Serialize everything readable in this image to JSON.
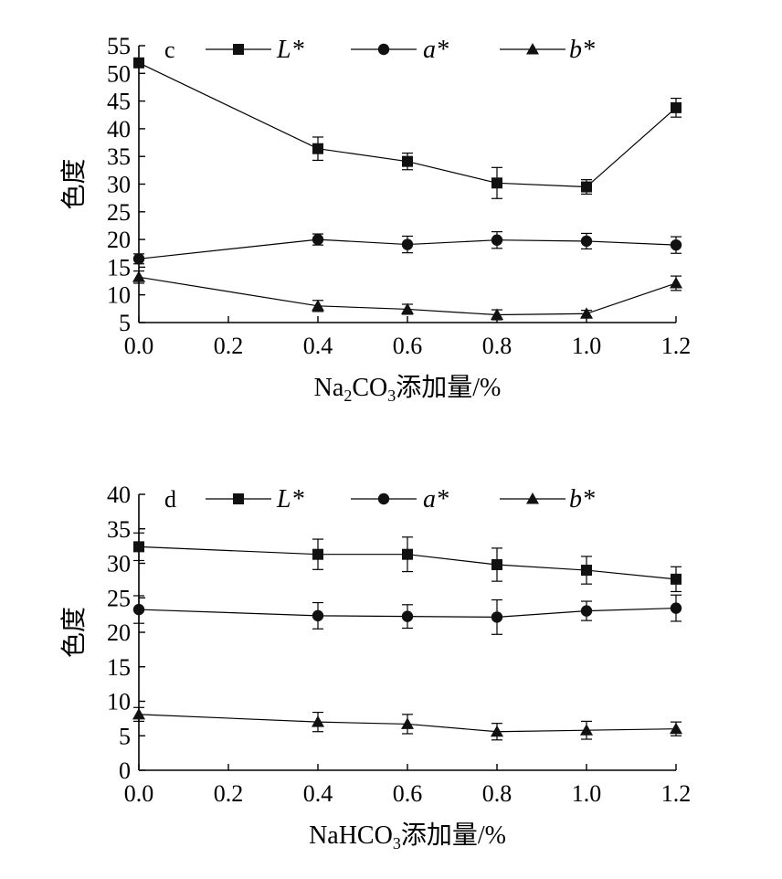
{
  "chart_data": [
    {
      "type": "line",
      "panel_label": "c",
      "xlabel": "Na2CO3添加量/%",
      "xlabel_parts": {
        "a": "Na",
        "a_sub": "2",
        "b": "CO",
        "b_sub": "3",
        "c": "添加量/%"
      },
      "ylabel": "色度",
      "x": [
        0.0,
        0.4,
        0.6,
        0.8,
        1.0,
        1.2
      ],
      "xticks": [
        "0.0",
        "0.2",
        "0.4",
        "0.6",
        "0.8",
        "1.0",
        "1.2"
      ],
      "xlim": [
        0.0,
        1.2
      ],
      "ylim": [
        5,
        55
      ],
      "yticks": [
        "5",
        "10",
        "15",
        "20",
        "25",
        "30",
        "35",
        "40",
        "45",
        "50",
        "55"
      ],
      "legend_position": "top",
      "series": [
        {
          "name": "L*",
          "marker": "square",
          "values": [
            51.9,
            36.4,
            34.1,
            30.2,
            29.5,
            43.8
          ],
          "errors": [
            0.8,
            2.1,
            1.5,
            2.8,
            1.3,
            1.7
          ]
        },
        {
          "name": "a*",
          "marker": "circle",
          "values": [
            16.5,
            20.0,
            19.1,
            19.9,
            19.7,
            19.0
          ],
          "errors": [
            0.9,
            1.0,
            1.5,
            1.5,
            1.4,
            1.5
          ]
        },
        {
          "name": "b*",
          "marker": "triangle",
          "values": [
            13.2,
            8.0,
            7.4,
            6.4,
            6.6,
            12.1
          ],
          "errors": [
            1.1,
            1.0,
            0.9,
            0.9,
            0.6,
            1.3
          ]
        }
      ]
    },
    {
      "type": "line",
      "panel_label": "d",
      "xlabel": "NaHCO3添加量/%",
      "xlabel_parts": {
        "a": "NaHCO",
        "a_sub": "3",
        "b": "添加量/%",
        "b_sub": "",
        "c": ""
      },
      "ylabel": "色度",
      "x": [
        0.0,
        0.4,
        0.6,
        0.8,
        1.0,
        1.2
      ],
      "xticks": [
        "0.0",
        "0.2",
        "0.4",
        "0.6",
        "0.8",
        "1.0",
        "1.2"
      ],
      "xlim": [
        0.0,
        1.2
      ],
      "ylim": [
        0,
        40
      ],
      "yticks": [
        "0",
        "5",
        "10",
        "15",
        "20",
        "25",
        "30",
        "35",
        "40"
      ],
      "legend_position": "top",
      "series": [
        {
          "name": "L*",
          "marker": "square",
          "values": [
            32.4,
            31.3,
            31.3,
            29.8,
            29.0,
            27.7
          ],
          "errors": [
            2.0,
            2.2,
            2.5,
            2.4,
            2.0,
            1.8
          ]
        },
        {
          "name": "a*",
          "marker": "circle",
          "values": [
            23.3,
            22.4,
            22.3,
            22.2,
            23.1,
            23.5
          ],
          "errors": [
            2.0,
            1.9,
            1.7,
            2.5,
            1.4,
            1.9
          ]
        },
        {
          "name": "b*",
          "marker": "triangle",
          "values": [
            8.1,
            7.0,
            6.7,
            5.6,
            5.8,
            6.0
          ],
          "errors": [
            1.0,
            1.4,
            1.4,
            1.2,
            1.3,
            1.0
          ]
        }
      ]
    }
  ]
}
